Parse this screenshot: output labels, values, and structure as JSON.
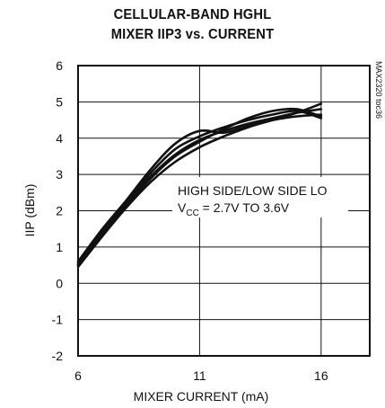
{
  "chart_data": {
    "type": "line",
    "title_line1": "CELLULAR-BAND HGHL",
    "title_line2": "MIXER IIP3 vs. CURRENT",
    "xlabel": "MIXER CURRENT (mA)",
    "ylabel": "IIP (dBm)",
    "xlim": [
      6,
      18
    ],
    "ylim": [
      -2,
      6
    ],
    "x_ticks": [
      "6",
      "11",
      "16"
    ],
    "y_ticks": [
      "6",
      "5",
      "4",
      "3",
      "2",
      "1",
      "0",
      "-1",
      "-2"
    ],
    "grid": true,
    "annotation_line1": "HIGH SIDE/LOW SIDE LO",
    "annotation_line2_prefix": "V",
    "annotation_line2_sub": "CC",
    "annotation_line2_suffix": " = 2.7V TO 3.6V",
    "side_label": "MAX2320 toc36",
    "series": [
      {
        "x": [
          6,
          7,
          8,
          9,
          10,
          11,
          12,
          13,
          14,
          15,
          16
        ],
        "values": [
          0.45,
          1.3,
          2.1,
          2.8,
          3.35,
          3.75,
          4.05,
          4.3,
          4.5,
          4.7,
          4.95
        ]
      },
      {
        "x": [
          6,
          7,
          8,
          9,
          10,
          11,
          12,
          13,
          14,
          15,
          16
        ],
        "values": [
          0.5,
          1.4,
          2.2,
          2.95,
          3.55,
          3.95,
          4.2,
          4.4,
          4.55,
          4.7,
          4.8
        ]
      },
      {
        "x": [
          6,
          7,
          8,
          9,
          10,
          11,
          12,
          13,
          14,
          15,
          16
        ],
        "values": [
          0.6,
          1.5,
          2.3,
          3.15,
          3.85,
          4.2,
          4.15,
          4.35,
          4.5,
          4.6,
          4.65
        ]
      },
      {
        "x": [
          6,
          7,
          8,
          9,
          10,
          11,
          12,
          13,
          14,
          15,
          16
        ],
        "values": [
          0.55,
          1.45,
          2.25,
          3.05,
          3.7,
          4.05,
          4.3,
          4.5,
          4.65,
          4.75,
          4.55
        ]
      },
      {
        "x": [
          6,
          7,
          8,
          9,
          10,
          11,
          12,
          13,
          14,
          15,
          16
        ],
        "values": [
          0.5,
          1.35,
          2.15,
          2.9,
          3.5,
          3.9,
          4.25,
          4.55,
          4.75,
          4.8,
          4.6
        ]
      }
    ]
  }
}
